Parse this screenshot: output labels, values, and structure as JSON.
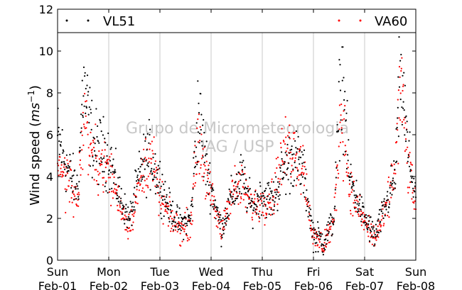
{
  "chart_data": {
    "type": "scatter",
    "title": "",
    "xlabel": "",
    "ylabel": "Wind speed (m s⁻¹)",
    "ylabel_parts": {
      "main": "Wind speed (",
      "unit": "ms",
      "exp": "−1",
      "close": ")"
    },
    "ylim": [
      0,
      12
    ],
    "yticks": [
      0,
      2,
      4,
      6,
      8,
      10,
      12
    ],
    "xlim_days": [
      0,
      7
    ],
    "xticks": [
      {
        "day": 0,
        "weekday": "Sun",
        "date": "Feb-01"
      },
      {
        "day": 1,
        "weekday": "Mon",
        "date": "Feb-02"
      },
      {
        "day": 2,
        "weekday": "Tue",
        "date": "Feb-03"
      },
      {
        "day": 3,
        "weekday": "Wed",
        "date": "Feb-04"
      },
      {
        "day": 4,
        "weekday": "Thu",
        "date": "Feb-05"
      },
      {
        "day": 5,
        "weekday": "Fri",
        "date": "Feb-06"
      },
      {
        "day": 6,
        "weekday": "Sat",
        "date": "Feb-07"
      },
      {
        "day": 7,
        "weekday": "Sun",
        "date": "Feb-08"
      }
    ],
    "grid": "vertical",
    "legend_placement": "top",
    "watermark": [
      "Grupo de Micrometeorologia",
      "IAG / USP"
    ],
    "series": [
      {
        "name": "VL51",
        "color": "#000000",
        "day_means": [
          {
            "day": 0.0,
            "wind_speed": 5.8
          },
          {
            "day": 0.25,
            "wind_speed": 4.0
          },
          {
            "day": 0.4,
            "wind_speed": 3.4
          },
          {
            "day": 0.5,
            "wind_speed": 8.4
          },
          {
            "day": 0.7,
            "wind_speed": 5.5
          },
          {
            "day": 1.0,
            "wind_speed": 5.0
          },
          {
            "day": 1.2,
            "wind_speed": 3.2
          },
          {
            "day": 1.4,
            "wind_speed": 1.9
          },
          {
            "day": 1.65,
            "wind_speed": 4.5
          },
          {
            "day": 1.8,
            "wind_speed": 5.0
          },
          {
            "day": 2.0,
            "wind_speed": 3.8
          },
          {
            "day": 2.2,
            "wind_speed": 2.4
          },
          {
            "day": 2.4,
            "wind_speed": 1.7
          },
          {
            "day": 2.6,
            "wind_speed": 2.0
          },
          {
            "day": 2.75,
            "wind_speed": 7.2
          },
          {
            "day": 2.9,
            "wind_speed": 4.6
          },
          {
            "day": 3.0,
            "wind_speed": 3.5
          },
          {
            "day": 3.2,
            "wind_speed": 1.5
          },
          {
            "day": 3.4,
            "wind_speed": 3.0
          },
          {
            "day": 3.6,
            "wind_speed": 4.0
          },
          {
            "day": 3.8,
            "wind_speed": 2.5
          },
          {
            "day": 4.0,
            "wind_speed": 3.2
          },
          {
            "day": 4.2,
            "wind_speed": 2.8
          },
          {
            "day": 4.4,
            "wind_speed": 4.2
          },
          {
            "day": 4.6,
            "wind_speed": 5.0
          },
          {
            "day": 4.8,
            "wind_speed": 4.2
          },
          {
            "day": 5.0,
            "wind_speed": 1.2
          },
          {
            "day": 5.2,
            "wind_speed": 0.9
          },
          {
            "day": 5.4,
            "wind_speed": 2.0
          },
          {
            "day": 5.55,
            "wind_speed": 9.5
          },
          {
            "day": 5.7,
            "wind_speed": 4.0
          },
          {
            "day": 5.9,
            "wind_speed": 2.6
          },
          {
            "day": 6.0,
            "wind_speed": 2.0
          },
          {
            "day": 6.2,
            "wind_speed": 1.1
          },
          {
            "day": 6.4,
            "wind_speed": 2.5
          },
          {
            "day": 6.6,
            "wind_speed": 4.0
          },
          {
            "day": 6.7,
            "wind_speed": 9.5
          },
          {
            "day": 6.85,
            "wind_speed": 5.0
          },
          {
            "day": 7.0,
            "wind_speed": 3.2
          }
        ]
      },
      {
        "name": "VA60",
        "color": "#ff0000",
        "day_means": [
          {
            "day": 0.0,
            "wind_speed": 4.8
          },
          {
            "day": 0.25,
            "wind_speed": 3.6
          },
          {
            "day": 0.4,
            "wind_speed": 2.6
          },
          {
            "day": 0.5,
            "wind_speed": 7.0
          },
          {
            "day": 0.7,
            "wind_speed": 5.0
          },
          {
            "day": 1.0,
            "wind_speed": 4.3
          },
          {
            "day": 1.2,
            "wind_speed": 2.8
          },
          {
            "day": 1.4,
            "wind_speed": 1.6
          },
          {
            "day": 1.65,
            "wind_speed": 4.0
          },
          {
            "day": 1.8,
            "wind_speed": 5.2
          },
          {
            "day": 2.0,
            "wind_speed": 3.0
          },
          {
            "day": 2.2,
            "wind_speed": 2.0
          },
          {
            "day": 2.4,
            "wind_speed": 1.5
          },
          {
            "day": 2.6,
            "wind_speed": 1.8
          },
          {
            "day": 2.75,
            "wind_speed": 6.0
          },
          {
            "day": 2.9,
            "wind_speed": 4.2
          },
          {
            "day": 3.0,
            "wind_speed": 3.0
          },
          {
            "day": 3.2,
            "wind_speed": 1.4
          },
          {
            "day": 3.4,
            "wind_speed": 3.3
          },
          {
            "day": 3.6,
            "wind_speed": 3.5
          },
          {
            "day": 3.8,
            "wind_speed": 2.6
          },
          {
            "day": 4.0,
            "wind_speed": 2.8
          },
          {
            "day": 4.2,
            "wind_speed": 3.0
          },
          {
            "day": 4.4,
            "wind_speed": 5.0
          },
          {
            "day": 4.6,
            "wind_speed": 5.5
          },
          {
            "day": 4.8,
            "wind_speed": 4.5
          },
          {
            "day": 5.0,
            "wind_speed": 1.0
          },
          {
            "day": 5.2,
            "wind_speed": 0.8
          },
          {
            "day": 5.4,
            "wind_speed": 1.8
          },
          {
            "day": 5.55,
            "wind_speed": 7.5
          },
          {
            "day": 5.7,
            "wind_speed": 3.5
          },
          {
            "day": 5.9,
            "wind_speed": 2.3
          },
          {
            "day": 6.0,
            "wind_speed": 1.8
          },
          {
            "day": 6.2,
            "wind_speed": 1.0
          },
          {
            "day": 6.4,
            "wind_speed": 2.2
          },
          {
            "day": 6.6,
            "wind_speed": 4.5
          },
          {
            "day": 6.7,
            "wind_speed": 8.5
          },
          {
            "day": 6.85,
            "wind_speed": 4.5
          },
          {
            "day": 7.0,
            "wind_speed": 2.6
          }
        ]
      }
    ]
  }
}
